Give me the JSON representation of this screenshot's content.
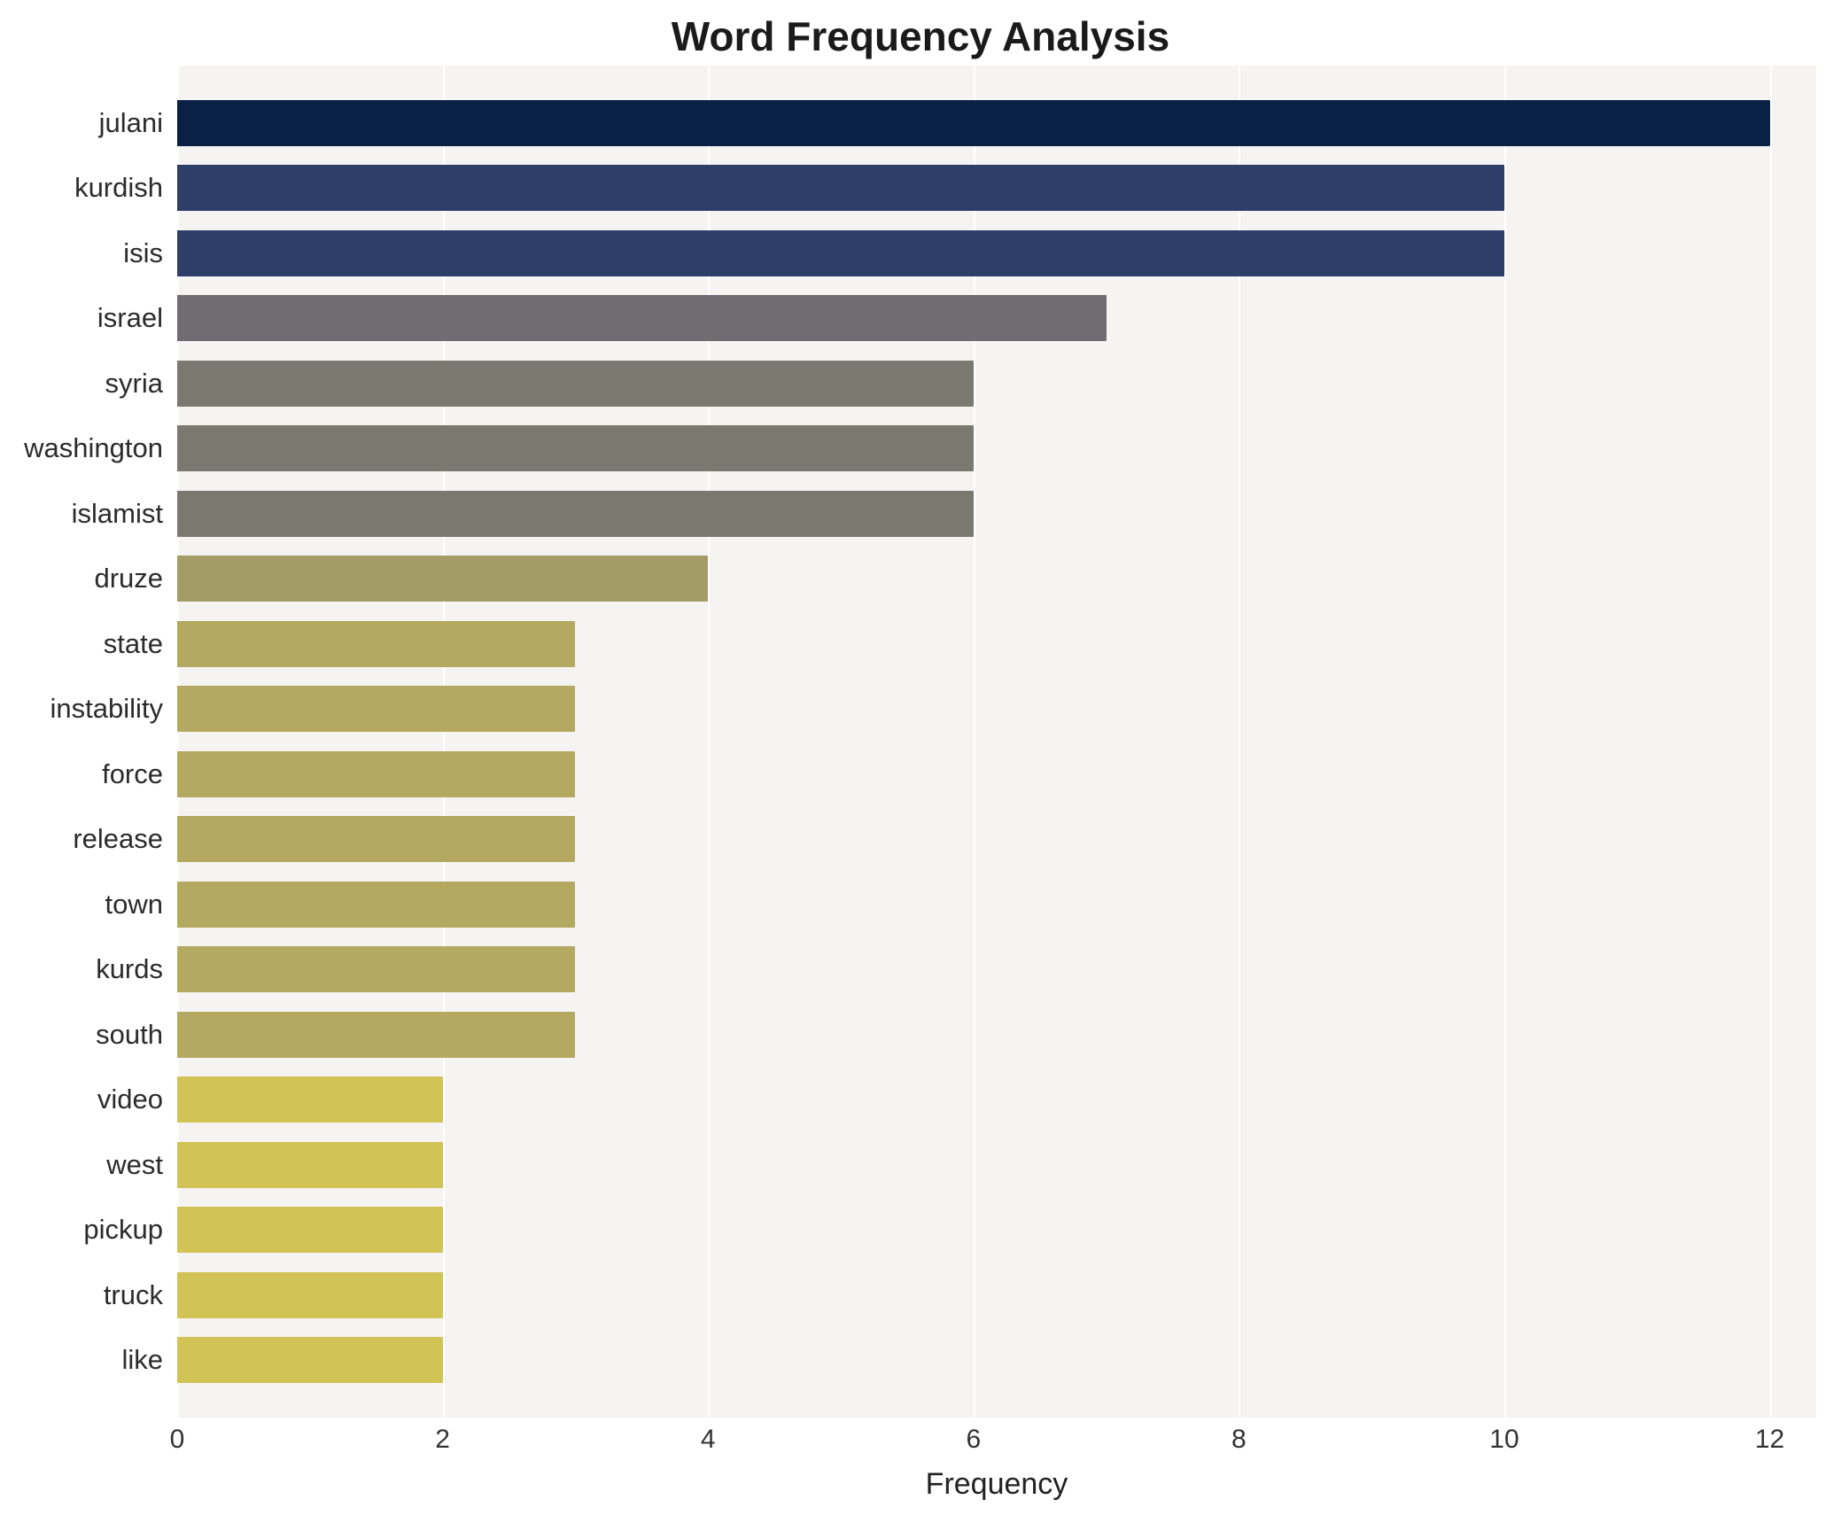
{
  "chart_data": {
    "type": "bar",
    "orientation": "horizontal",
    "title": "Word Frequency Analysis",
    "xlabel": "Frequency",
    "ylabel": "",
    "xlim": [
      0,
      12.35
    ],
    "xticks": [
      0,
      2,
      4,
      6,
      8,
      10,
      12
    ],
    "grid": true,
    "legend": "none",
    "plot_background": "#f5f4f2",
    "grid_color": "#ffffff",
    "categories": [
      "julani",
      "kurdish",
      "isis",
      "israel",
      "syria",
      "washington",
      "islamist",
      "druze",
      "state",
      "instability",
      "force",
      "release",
      "town",
      "kurds",
      "south",
      "video",
      "west",
      "pickup",
      "truck",
      "like"
    ],
    "values": [
      12,
      10,
      10,
      7,
      6,
      6,
      6,
      4,
      3,
      3,
      3,
      3,
      3,
      3,
      3,
      2,
      2,
      2,
      2,
      2
    ],
    "colors": [
      "#0a2045",
      "#2e3e6b",
      "#2e3e6b",
      "#6f6d72",
      "#7b786f",
      "#7b786f",
      "#7b786f",
      "#a49c67",
      "#b3a960",
      "#b3a960",
      "#b3a960",
      "#b3a960",
      "#b3a960",
      "#b3a960",
      "#b3a960",
      "#d1c355",
      "#d1c355",
      "#d1c355",
      "#d1c355",
      "#d1c355"
    ]
  }
}
